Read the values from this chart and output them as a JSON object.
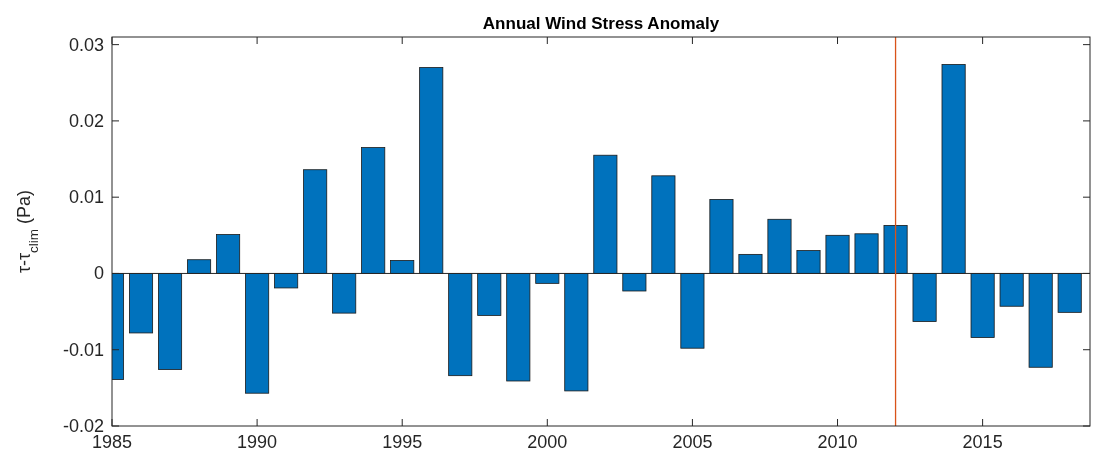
{
  "chart_data": {
    "type": "bar",
    "title": "Annual Wind Stress Anomaly",
    "ylabel": "τ-τ$_{clim}$ (Pa)",
    "x": [
      1985,
      1986,
      1987,
      1988,
      1989,
      1990,
      1991,
      1992,
      1993,
      1994,
      1995,
      1996,
      1997,
      1998,
      1999,
      2000,
      2001,
      2002,
      2003,
      2004,
      2005,
      2006,
      2007,
      2008,
      2009,
      2010,
      2011,
      2012,
      2013,
      2014,
      2015,
      2016,
      2017,
      2018
    ],
    "series": [
      {
        "color": "#0072bd",
        "values": [
          -0.0139,
          -0.0078,
          -0.0126,
          0.0018,
          0.0051,
          -0.0157,
          -0.0019,
          0.0136,
          -0.0052,
          0.0165,
          0.0017,
          0.027,
          -0.0134,
          -0.0055,
          -0.0141,
          -0.0013,
          -0.0154,
          0.0155,
          -0.0023,
          0.0128,
          -0.0098,
          0.0097,
          0.0025,
          0.0071,
          0.003,
          0.005,
          0.0052,
          0.0063,
          -0.0063,
          0.0274,
          -0.0084,
          -0.0043,
          -0.0123,
          -0.0051
        ]
      }
    ],
    "xlim": [
      1985,
      2018.7
    ],
    "xticks": [
      1985,
      1990,
      1995,
      2000,
      2005,
      2010,
      2015
    ],
    "ylim": [
      -0.02,
      0.031
    ],
    "yticks": [
      -0.02,
      -0.01,
      0,
      0.01,
      0.02,
      0.03
    ],
    "ref_lines": [
      {
        "axis": "x",
        "value": 2012,
        "color": "#d95319"
      }
    ]
  }
}
